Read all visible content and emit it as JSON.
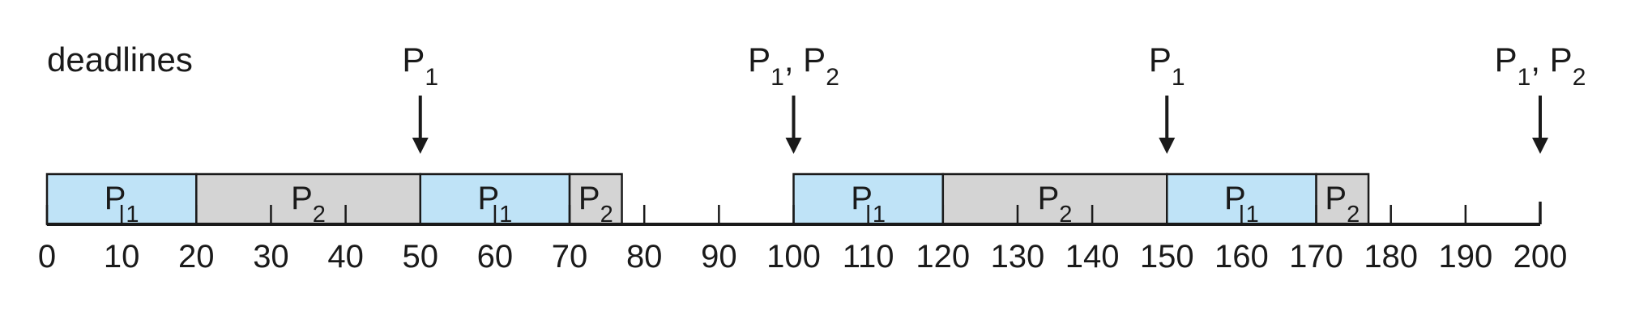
{
  "title": "deadlines",
  "colors": {
    "P1": "#bfe3f7",
    "P2": "#d4d4d4",
    "stroke": "#1a1a1a"
  },
  "timeline": {
    "min": 0,
    "max": 200,
    "tick_step": 10,
    "tick_labels": [
      "0",
      "10",
      "20",
      "30",
      "40",
      "50",
      "60",
      "70",
      "80",
      "90",
      "100",
      "110",
      "120",
      "130",
      "140",
      "150",
      "160",
      "170",
      "180",
      "190",
      "200"
    ]
  },
  "segments": [
    {
      "process": "P1",
      "name": "P",
      "sub": "1",
      "start": 0,
      "end": 20
    },
    {
      "process": "P2",
      "name": "P",
      "sub": "2",
      "start": 20,
      "end": 50
    },
    {
      "process": "P1",
      "name": "P",
      "sub": "1",
      "start": 50,
      "end": 70
    },
    {
      "process": "P2",
      "name": "P",
      "sub": "2",
      "start": 70,
      "end": 77
    },
    {
      "process": "P1",
      "name": "P",
      "sub": "1",
      "start": 100,
      "end": 120
    },
    {
      "process": "P2",
      "name": "P",
      "sub": "2",
      "start": 120,
      "end": 150
    },
    {
      "process": "P1",
      "name": "P",
      "sub": "1",
      "start": 150,
      "end": 170
    },
    {
      "process": "P2",
      "name": "P",
      "sub": "2",
      "start": 170,
      "end": 177
    }
  ],
  "deadlines": [
    {
      "time": 50,
      "parts": [
        {
          "name": "P",
          "sub": "1"
        }
      ]
    },
    {
      "time": 100,
      "parts": [
        {
          "name": "P",
          "sub": "1"
        },
        {
          "name": "P",
          "sub": "2"
        }
      ]
    },
    {
      "time": 150,
      "parts": [
        {
          "name": "P",
          "sub": "1"
        }
      ]
    },
    {
      "time": 200,
      "parts": [
        {
          "name": "P",
          "sub": "1"
        },
        {
          "name": "P",
          "sub": "2"
        }
      ]
    }
  ]
}
